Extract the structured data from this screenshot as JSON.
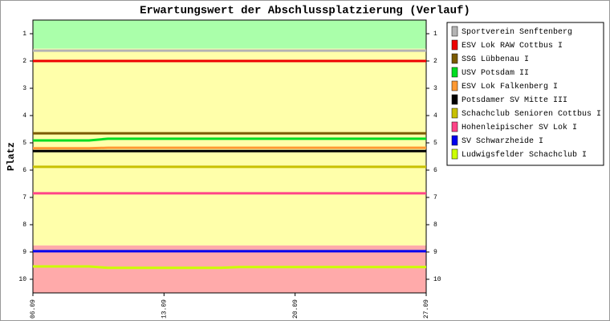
{
  "chart_data": {
    "type": "line",
    "title": "Erwartungswert der Abschlussplatzierung (Verlauf)",
    "y_label": "Platz",
    "x": [
      6,
      9,
      10,
      16,
      17,
      27
    ],
    "xlim": [
      6,
      27
    ],
    "xticks": [
      {
        "value": 6,
        "label": "06.09"
      },
      {
        "value": 13,
        "label": "13.09"
      },
      {
        "value": 20,
        "label": "20.09"
      },
      {
        "value": 27,
        "label": "27.09"
      }
    ],
    "ylim": [
      0.5,
      10.5
    ],
    "y_inverted": true,
    "yticks": [
      1,
      2,
      3,
      4,
      5,
      6,
      7,
      8,
      9,
      10
    ],
    "bands": [
      {
        "from": 0.5,
        "to": 1.55,
        "color": "#aaffaa"
      },
      {
        "from": 1.55,
        "to": 8.76,
        "color": "#ffffaa"
      },
      {
        "from": 8.76,
        "to": 10.5,
        "color": "#ffaaaa"
      }
    ],
    "series": [
      {
        "name": "Sportverein Senftenberg",
        "color": "#b4b4b4",
        "values": [
          1.62,
          1.62,
          1.62,
          1.62,
          1.62,
          1.62
        ]
      },
      {
        "name": "ESV Lok RAW Cottbus I",
        "color": "#ee0000",
        "values": [
          2.0,
          2.0,
          2.0,
          2.0,
          2.0,
          2.0
        ]
      },
      {
        "name": "SSG Lübbenau I",
        "color": "#7a5a00",
        "values": [
          4.65,
          4.65,
          4.65,
          4.65,
          4.65,
          4.65
        ]
      },
      {
        "name": "USV Potsdam II",
        "color": "#00dd22",
        "values": [
          4.91,
          4.91,
          4.85,
          4.85,
          4.85,
          4.85
        ]
      },
      {
        "name": "ESV Lok Falkenberg I",
        "color": "#ff9933",
        "values": [
          5.2,
          5.2,
          5.18,
          5.18,
          5.18,
          5.18
        ]
      },
      {
        "name": "Potsdamer SV Mitte III",
        "color": "#000000",
        "values": [
          5.3,
          5.3,
          5.3,
          5.3,
          5.3,
          5.3
        ]
      },
      {
        "name": "Schachclub Senioren Cottbus I",
        "color": "#c8c000",
        "values": [
          5.88,
          5.88,
          5.88,
          5.88,
          5.88,
          5.88
        ]
      },
      {
        "name": "Hohenleipischer SV Lok I",
        "color": "#ff4488",
        "values": [
          6.85,
          6.85,
          6.85,
          6.85,
          6.85,
          6.85
        ]
      },
      {
        "name": "SV Schwarzheide I",
        "color": "#0000ee",
        "values": [
          8.97,
          8.97,
          8.97,
          8.97,
          8.97,
          8.97
        ]
      },
      {
        "name": "Ludwigsfelder Schachclub I",
        "color": "#ccff00",
        "values": [
          9.53,
          9.53,
          9.58,
          9.58,
          9.55,
          9.55
        ]
      }
    ]
  }
}
